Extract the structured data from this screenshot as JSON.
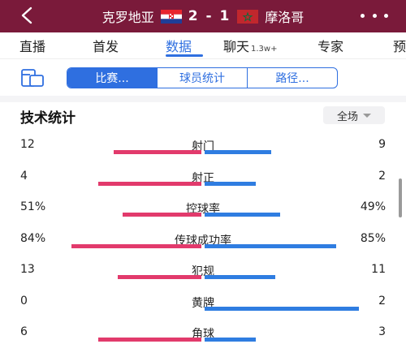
{
  "header": {
    "home_team": "克罗地亚",
    "away_team": "摩洛哥",
    "score": "2 - 1",
    "back_icon": "back-arrow-icon",
    "more_icon": "more-dots-icon"
  },
  "tabs": [
    {
      "label": "直播",
      "count": ""
    },
    {
      "label": "首发",
      "count": ""
    },
    {
      "label": "数据",
      "count": "",
      "active": true
    },
    {
      "label": "聊天",
      "count": "1.3w+"
    },
    {
      "label": "专家",
      "count": ""
    },
    {
      "label": "预",
      "count": ""
    }
  ],
  "segments": [
    "比赛...",
    "球员统计",
    "路径..."
  ],
  "stats": {
    "title": "技术统计",
    "range": "全场",
    "rows": [
      {
        "label": "射门",
        "home": "12",
        "away": "9",
        "home_frac": 0.571,
        "away_frac": 0.429
      },
      {
        "label": "射正",
        "home": "4",
        "away": "2",
        "home_frac": 0.667,
        "away_frac": 0.333
      },
      {
        "label": "控球率",
        "home": "51%",
        "away": "49%",
        "home_frac": 0.51,
        "away_frac": 0.49
      },
      {
        "label": "传球成功率",
        "home": "84%",
        "away": "85%",
        "home_frac": 0.84,
        "away_frac": 0.85
      },
      {
        "label": "犯规",
        "home": "13",
        "away": "11",
        "home_frac": 0.542,
        "away_frac": 0.458
      },
      {
        "label": "黄牌",
        "home": "0",
        "away": "2",
        "home_frac": 0.0,
        "away_frac": 1.0
      },
      {
        "label": "角球",
        "home": "6",
        "away": "3",
        "home_frac": 0.667,
        "away_frac": 0.333
      }
    ]
  },
  "colors": {
    "header_bg": "#7a1a3a",
    "accent": "#2f6fe0",
    "home_bar": "#e23a6c",
    "away_bar": "#2f7de1"
  }
}
